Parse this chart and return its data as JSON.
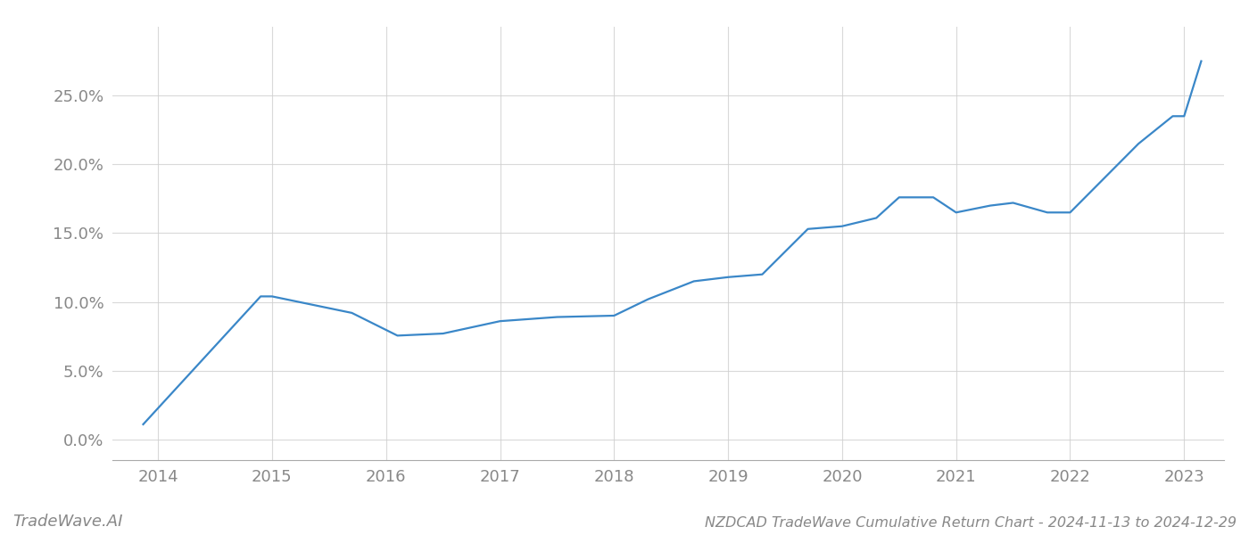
{
  "x_years": [
    2013.87,
    2014.9,
    2015.0,
    2015.7,
    2016.1,
    2016.5,
    2017.0,
    2017.5,
    2018.0,
    2018.3,
    2018.7,
    2019.0,
    2019.3,
    2019.7,
    2020.0,
    2020.3,
    2020.5,
    2020.8,
    2021.0,
    2021.3,
    2021.5,
    2021.8,
    2022.0,
    2022.3,
    2022.6,
    2022.9,
    2023.0,
    2023.15
  ],
  "y_values": [
    1.1,
    10.4,
    10.4,
    9.2,
    7.55,
    7.7,
    8.6,
    8.9,
    9.0,
    10.2,
    11.5,
    11.8,
    12.0,
    15.3,
    15.5,
    16.1,
    17.6,
    17.6,
    16.5,
    17.0,
    17.2,
    16.5,
    16.5,
    19.0,
    21.5,
    23.5,
    23.5,
    27.5
  ],
  "line_color": "#3a87c8",
  "line_width": 1.6,
  "title": "NZDCAD TradeWave Cumulative Return Chart - 2024-11-13 to 2024-12-29",
  "x_ticks": [
    2014,
    2015,
    2016,
    2017,
    2018,
    2019,
    2020,
    2021,
    2022,
    2023
  ],
  "y_ticks": [
    0.0,
    5.0,
    10.0,
    15.0,
    20.0,
    25.0
  ],
  "xlim": [
    2013.6,
    2023.35
  ],
  "ylim": [
    -1.5,
    30.0
  ],
  "grid_color": "#d0d0d0",
  "grid_alpha": 0.8,
  "background_color": "#ffffff",
  "watermark_text": "TradeWave.AI",
  "tick_fontsize": 13,
  "title_fontsize": 11.5,
  "watermark_fontsize": 13,
  "tick_color": "#888888",
  "spine_color": "#aaaaaa"
}
